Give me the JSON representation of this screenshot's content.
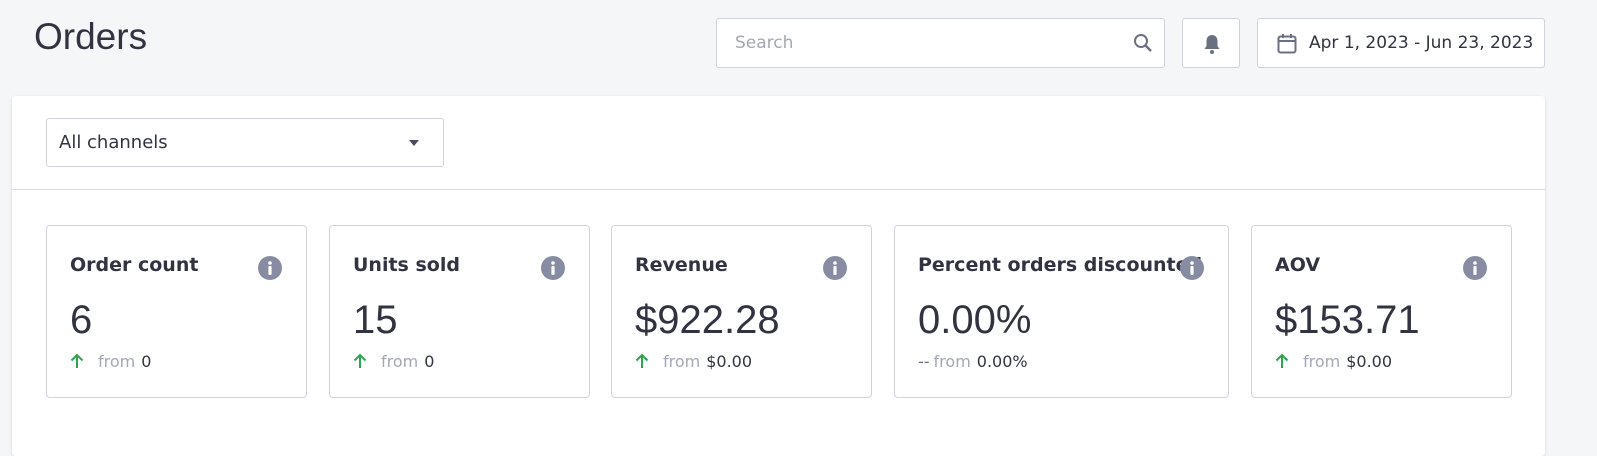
{
  "header": {
    "title": "Orders",
    "search_placeholder": "Search",
    "date_range": "Apr 1, 2023 - Jun 23, 2023"
  },
  "filter": {
    "channel": "All channels"
  },
  "cards": [
    {
      "title": "Order count",
      "value": "6",
      "from": "from",
      "previous": "0"
    },
    {
      "title": "Units sold",
      "value": "15",
      "from": "from",
      "previous": "0"
    },
    {
      "title": "Revenue",
      "value": "$922.28",
      "from": "from",
      "previous": "$0.00"
    },
    {
      "title": "Percent orders discounted",
      "value": "0.00%",
      "change": "--",
      "from": "from",
      "previous": "0.00%"
    },
    {
      "title": "AOV",
      "value": "$153.71",
      "from": "from",
      "previous": "$0.00"
    }
  ]
}
